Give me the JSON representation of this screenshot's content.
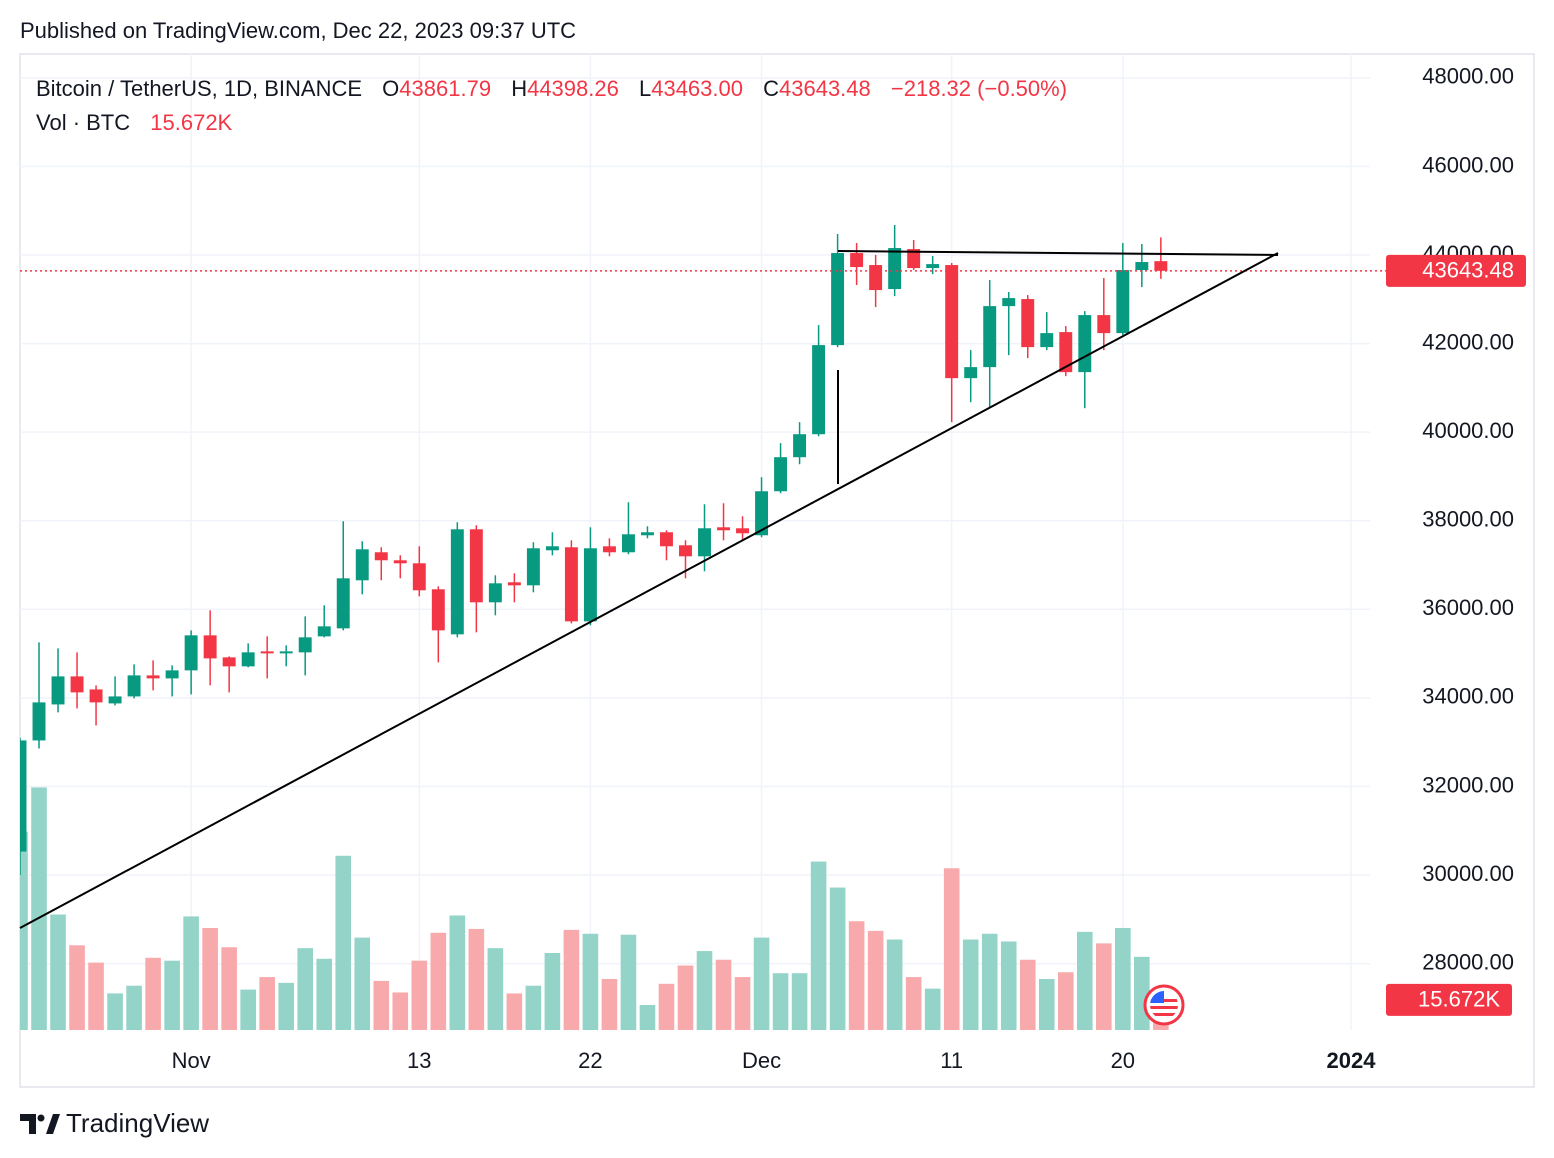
{
  "chart_data": {
    "type": "candlestick",
    "published": "Published on TradingView.com, Dec 22, 2023 09:37 UTC",
    "title": "Bitcoin / TetherUS, 1D, BINANCE",
    "legend_keys": {
      "open": "O",
      "high": "H",
      "low": "L",
      "close": "C"
    },
    "legend_values": {
      "open": 43861.79,
      "high": 44398.26,
      "low": {
        "value": 43463,
        "label": "43463.00"
      },
      "close": 43643.48,
      "change": {
        "value": -218.32,
        "label": "−218.32"
      },
      "change_pct": {
        "value": -0.5,
        "label": "(−0.50%)"
      },
      "volume": {
        "value": 15672,
        "label": "15.672K"
      }
    },
    "volume_title": "Vol · BTC",
    "brand": "TradingView",
    "x": [
      "2023-10-23",
      "2023-10-24",
      "2023-10-25",
      "2023-10-26",
      "2023-10-27",
      "2023-10-28",
      "2023-10-29",
      "2023-10-30",
      "2023-10-31",
      "2023-11-01",
      "2023-11-02",
      "2023-11-03",
      "2023-11-04",
      "2023-11-05",
      "2023-11-06",
      "2023-11-07",
      "2023-11-08",
      "2023-11-09",
      "2023-11-10",
      "2023-11-11",
      "2023-11-12",
      "2023-11-13",
      "2023-11-14",
      "2023-11-15",
      "2023-11-16",
      "2023-11-17",
      "2023-11-18",
      "2023-11-19",
      "2023-11-20",
      "2023-11-21",
      "2023-11-22",
      "2023-11-23",
      "2023-11-24",
      "2023-11-25",
      "2023-11-26",
      "2023-11-27",
      "2023-11-28",
      "2023-11-29",
      "2023-11-30",
      "2023-12-01",
      "2023-12-02",
      "2023-12-03",
      "2023-12-04",
      "2023-12-05",
      "2023-12-06",
      "2023-12-07",
      "2023-12-08",
      "2023-12-09",
      "2023-12-10",
      "2023-12-11",
      "2023-12-12",
      "2023-12-13",
      "2023-12-14",
      "2023-12-15",
      "2023-12-16",
      "2023-12-17",
      "2023-12-18",
      "2023-12-19",
      "2023-12-20",
      "2023-12-21",
      "2023-12-22"
    ],
    "open": [
      30530,
      33039,
      33852,
      34485,
      34191,
      33875,
      34033,
      34508,
      34440,
      34621,
      35412,
      34915,
      34712,
      35050,
      35005,
      35028,
      35389,
      35570,
      36655,
      37288,
      37107,
      37039,
      36452,
      35435,
      37807,
      36158,
      36610,
      36542,
      37333,
      37401,
      35728,
      37423,
      37288,
      37672,
      37740,
      37446,
      37197,
      37852,
      37830,
      37672,
      38666,
      39435,
      39954,
      41966,
      44045,
      43774,
      43232,
      44135,
      43706,
      43774,
      41220,
      41469,
      42847,
      43006,
      41921,
      42260,
      41356,
      42644,
      42237,
      43661,
      43861.79
    ],
    "high": [
      33100,
      35254,
      35118,
      35028,
      34282,
      34485,
      34757,
      34847,
      34734,
      35525,
      35977,
      34937,
      35231,
      35389,
      35186,
      35841,
      36090,
      37988,
      37536,
      37401,
      37220,
      37423,
      36519,
      37966,
      37898,
      36768,
      36813,
      37514,
      37740,
      37559,
      37852,
      37604,
      38418,
      37875,
      37785,
      37559,
      38372,
      38395,
      38101,
      38983,
      39751,
      40226,
      42418,
      44474,
      44271,
      44000,
      44678,
      44339,
      43977,
      43819,
      41853,
      43435,
      43164,
      43096,
      42712,
      42395,
      42734,
      43480,
      44271,
      44248,
      44398.26
    ],
    "low": [
      30000,
      32858,
      33672,
      33762,
      33378,
      33830,
      33988,
      34169,
      34033,
      34078,
      34282,
      34124,
      34689,
      34440,
      34712,
      34508,
      35367,
      35525,
      36338,
      36655,
      36700,
      36293,
      34802,
      35367,
      35480,
      35864,
      36158,
      36384,
      37220,
      35683,
      35638,
      37197,
      37243,
      37604,
      37107,
      36700,
      36858,
      37559,
      37559,
      37627,
      38621,
      39276,
      39909,
      41920,
      43322,
      42825,
      43073,
      43661,
      43570,
      40226,
      40678,
      40565,
      41740,
      41672,
      41853,
      41265,
      40542,
      41853,
      42192,
      43277,
      43463
    ],
    "close": [
      33039,
      33898,
      34485,
      34124,
      33898,
      34033,
      34508,
      34440,
      34621,
      35412,
      34892,
      34712,
      35028,
      35005,
      35050,
      35367,
      35615,
      36700,
      37355,
      37107,
      37039,
      36429,
      35525,
      37807,
      36158,
      36587,
      36542,
      37378,
      37423,
      35728,
      37378,
      37288,
      37694,
      37740,
      37423,
      37197,
      37830,
      37785,
      37717,
      38666,
      39435,
      39954,
      41966,
      44045,
      43729,
      43209,
      44158,
      43706,
      43796,
      41220,
      41469,
      42847,
      43028,
      41921,
      42237,
      41356,
      42644,
      42237,
      43661,
      43842,
      43643.48
    ],
    "volume": [
      103000,
      126000,
      60000,
      44000,
      35000,
      19000,
      23000,
      37500,
      36000,
      59000,
      53000,
      43000,
      21000,
      27500,
      24500,
      42500,
      37000,
      90500,
      48000,
      25500,
      19500,
      36000,
      50500,
      59500,
      52500,
      42500,
      19000,
      23000,
      40000,
      52000,
      50000,
      26500,
      49500,
      13000,
      24000,
      33500,
      41000,
      36500,
      27500,
      48000,
      29500,
      29500,
      87500,
      74000,
      56500,
      51500,
      47000,
      27500,
      21500,
      84000,
      47000,
      50000,
      46000,
      36500,
      26500,
      30000,
      51000,
      45000,
      53000,
      38000,
      15672
    ],
    "up_color": "#089981",
    "down_color": "#f23645",
    "volume_up_color": "#93d3c8",
    "volume_down_color": "#f8a9ab",
    "xlim": [
      "2023-10-23",
      "2024-01-02"
    ],
    "xticks": [
      {
        "value": "2023-11-01",
        "label": "Nov"
      },
      {
        "value": "2023-11-13",
        "label": "13"
      },
      {
        "value": "2023-11-22",
        "label": "22"
      },
      {
        "value": "2023-12-01",
        "label": "Dec"
      },
      {
        "value": "2023-12-11",
        "label": "11"
      },
      {
        "value": "2023-12-20",
        "label": "20"
      },
      {
        "value": "2024-01-01",
        "label": "2024"
      }
    ],
    "ylim": [
      26500,
      48540
    ],
    "yticks": [
      {
        "value": 28000,
        "label": "28000.00"
      },
      {
        "value": 30000,
        "label": "30000.00"
      },
      {
        "value": 32000,
        "label": "32000.00"
      },
      {
        "value": 34000,
        "label": "34000.00"
      },
      {
        "value": 36000,
        "label": "36000.00"
      },
      {
        "value": 38000,
        "label": "38000.00"
      },
      {
        "value": 40000,
        "label": "40000.00"
      },
      {
        "value": 42000,
        "label": "42000.00"
      },
      {
        "value": 44000,
        "label": "44000.00"
      },
      {
        "value": 46000,
        "label": "46000.00"
      },
      {
        "value": 48000,
        "label": "48000.00"
      }
    ],
    "volume_ylim": [
      0,
      200000
    ],
    "grid": true
  }
}
